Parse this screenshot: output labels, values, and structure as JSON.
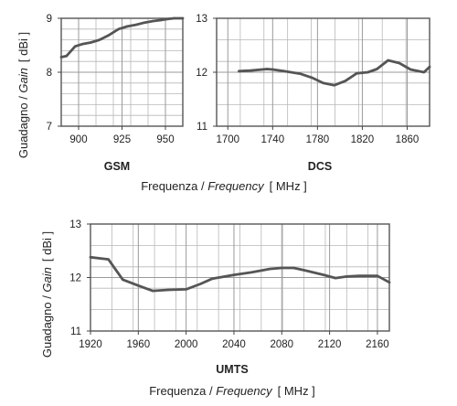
{
  "y_axis_label": {
    "main": "Guadagno / ",
    "italic": "Gain",
    "unit": "[ dBi ]"
  },
  "x_axis_label": {
    "main": "Frequenza / ",
    "italic": "Frequency",
    "unit": "[ MHz ]"
  },
  "colors": {
    "line": "#555555",
    "grid": "#b8b8b8",
    "frame": "#555555"
  },
  "chart_data": [
    {
      "type": "line",
      "caption": "GSM",
      "xlim": [
        890,
        960
      ],
      "ylim": [
        7,
        9
      ],
      "x_ticks": [
        900,
        925,
        950
      ],
      "y_ticks": [
        7,
        8,
        9
      ],
      "grid": true,
      "x": [
        890,
        893,
        898,
        902,
        907,
        912,
        917,
        923,
        928,
        933,
        938,
        943,
        948,
        952,
        955,
        960
      ],
      "y": [
        8.28,
        8.3,
        8.48,
        8.52,
        8.55,
        8.6,
        8.68,
        8.8,
        8.85,
        8.88,
        8.92,
        8.95,
        8.97,
        8.99,
        9.0,
        9.0
      ]
    },
    {
      "type": "line",
      "caption": "DCS",
      "xlim": [
        1690,
        1880
      ],
      "ylim": [
        11,
        13
      ],
      "x_ticks": [
        1700,
        1740,
        1780,
        1820,
        1860
      ],
      "y_ticks": [
        11,
        12,
        13
      ],
      "grid": true,
      "x": [
        1710,
        1720,
        1735,
        1740,
        1750,
        1765,
        1775,
        1785,
        1795,
        1805,
        1815,
        1825,
        1833,
        1843,
        1853,
        1863,
        1875,
        1880
      ],
      "y": [
        12.02,
        12.03,
        12.06,
        12.05,
        12.02,
        11.97,
        11.9,
        11.8,
        11.76,
        11.84,
        11.98,
        12.0,
        12.06,
        12.22,
        12.17,
        12.05,
        12.0,
        12.1
      ]
    },
    {
      "type": "line",
      "caption": "UMTS",
      "xlim": [
        1920,
        2170
      ],
      "ylim": [
        11,
        13
      ],
      "x_ticks": [
        1920,
        1960,
        2000,
        2040,
        2080,
        2120,
        2160
      ],
      "y_ticks": [
        11,
        12,
        13
      ],
      "grid": true,
      "x": [
        1920,
        1935,
        1947,
        1960,
        1972,
        1985,
        2000,
        2012,
        2022,
        2040,
        2055,
        2070,
        2080,
        2090,
        2100,
        2115,
        2125,
        2135,
        2145,
        2160,
        2170
      ],
      "y": [
        12.38,
        12.34,
        11.96,
        11.85,
        11.75,
        11.77,
        11.78,
        11.88,
        11.98,
        12.05,
        12.1,
        12.16,
        12.18,
        12.18,
        12.13,
        12.05,
        11.99,
        12.02,
        12.03,
        12.03,
        11.91
      ]
    }
  ]
}
